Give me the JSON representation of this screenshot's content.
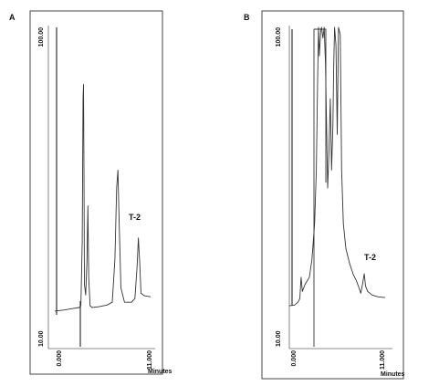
{
  "chart_data": [
    {
      "type": "line",
      "panel": "A",
      "xlabel": "Minutes",
      "ylabel": "",
      "xlim": [
        0.0,
        11.0
      ],
      "ylim": [
        10.0,
        100.0
      ],
      "x_ticks": [
        "0.000",
        "11.000"
      ],
      "y_ticks": [
        "100.00",
        "10.00"
      ],
      "grid": false,
      "legend": "none",
      "annotations": [
        {
          "text": "T-2",
          "x": 9.7,
          "y": 39
        }
      ],
      "series": [
        {
          "values": [
            [
              0.0,
              20.5
            ],
            [
              1.0,
              20.8
            ],
            [
              2.0,
              21.2
            ],
            [
              2.8,
              21.5
            ],
            [
              3.0,
              22.0
            ],
            [
              3.15,
              40.0
            ],
            [
              3.25,
              80.0
            ],
            [
              3.3,
              84.0
            ],
            [
              3.35,
              60.0
            ],
            [
              3.4,
              28.0
            ],
            [
              3.55,
              25.0
            ],
            [
              3.7,
              35.0
            ],
            [
              3.8,
              50.0
            ],
            [
              3.9,
              30.0
            ],
            [
              4.05,
              22.0
            ],
            [
              4.3,
              21.5
            ],
            [
              5.0,
              21.7
            ],
            [
              6.0,
              22.2
            ],
            [
              6.6,
              23.0
            ],
            [
              6.9,
              35.0
            ],
            [
              7.1,
              55.0
            ],
            [
              7.25,
              60.0
            ],
            [
              7.4,
              45.0
            ],
            [
              7.6,
              27.0
            ],
            [
              8.0,
              23.0
            ],
            [
              8.8,
              23.0
            ],
            [
              9.2,
              24.0
            ],
            [
              9.45,
              33.0
            ],
            [
              9.6,
              41.0
            ],
            [
              9.75,
              34.0
            ],
            [
              9.9,
              25.5
            ],
            [
              10.3,
              24.8
            ],
            [
              11.0,
              24.5
            ]
          ]
        }
      ]
    },
    {
      "type": "line",
      "panel": "B",
      "xlabel": "Minutes",
      "ylabel": "",
      "xlim": [
        0.0,
        11.0
      ],
      "ylim": [
        10.0,
        100.0
      ],
      "x_ticks": [
        "0.000",
        "11.000"
      ],
      "y_ticks": [
        "100.00",
        "10.00"
      ],
      "grid": false,
      "legend": "none",
      "annotations": [
        {
          "text": "T-2",
          "x": 8.5,
          "y": 31
        }
      ],
      "series": [
        {
          "values": [
            [
              0.0,
              22.0
            ],
            [
              0.6,
              22.2
            ],
            [
              1.0,
              23.0
            ],
            [
              1.2,
              24.0
            ],
            [
              1.35,
              30.0
            ],
            [
              1.5,
              26.0
            ],
            [
              1.8,
              28.0
            ],
            [
              2.3,
              30.0
            ],
            [
              2.6,
              35.0
            ],
            [
              2.9,
              45.0
            ],
            [
              3.1,
              60.0
            ],
            [
              3.25,
              85.0
            ],
            [
              3.35,
              100.0
            ],
            [
              3.45,
              92.0
            ],
            [
              3.6,
              99.0
            ],
            [
              3.7,
              100.0
            ],
            [
              3.85,
              97.0
            ],
            [
              4.0,
              100.0
            ],
            [
              4.15,
              90.0
            ],
            [
              4.3,
              70.0
            ],
            [
              4.4,
              55.0
            ],
            [
              4.55,
              65.0
            ],
            [
              4.7,
              80.0
            ],
            [
              4.85,
              60.0
            ],
            [
              5.0,
              72.0
            ],
            [
              5.1,
              90.0
            ],
            [
              5.2,
              100.0
            ],
            [
              5.35,
              95.0
            ],
            [
              5.5,
              70.0
            ],
            [
              5.65,
              100.0
            ],
            [
              5.85,
              98.0
            ],
            [
              6.0,
              60.0
            ],
            [
              6.2,
              45.0
            ],
            [
              6.5,
              38.0
            ],
            [
              6.9,
              34.0
            ],
            [
              7.3,
              31.0
            ],
            [
              7.7,
              29.0
            ],
            [
              8.0,
              27.0
            ],
            [
              8.2,
              25.5
            ],
            [
              8.4,
              28.0
            ],
            [
              8.6,
              31.0
            ],
            [
              8.75,
              27.5
            ],
            [
              9.0,
              26.0
            ],
            [
              9.5,
              25.0
            ],
            [
              10.2,
              24.5
            ],
            [
              11.0,
              24.3
            ]
          ]
        }
      ]
    }
  ]
}
